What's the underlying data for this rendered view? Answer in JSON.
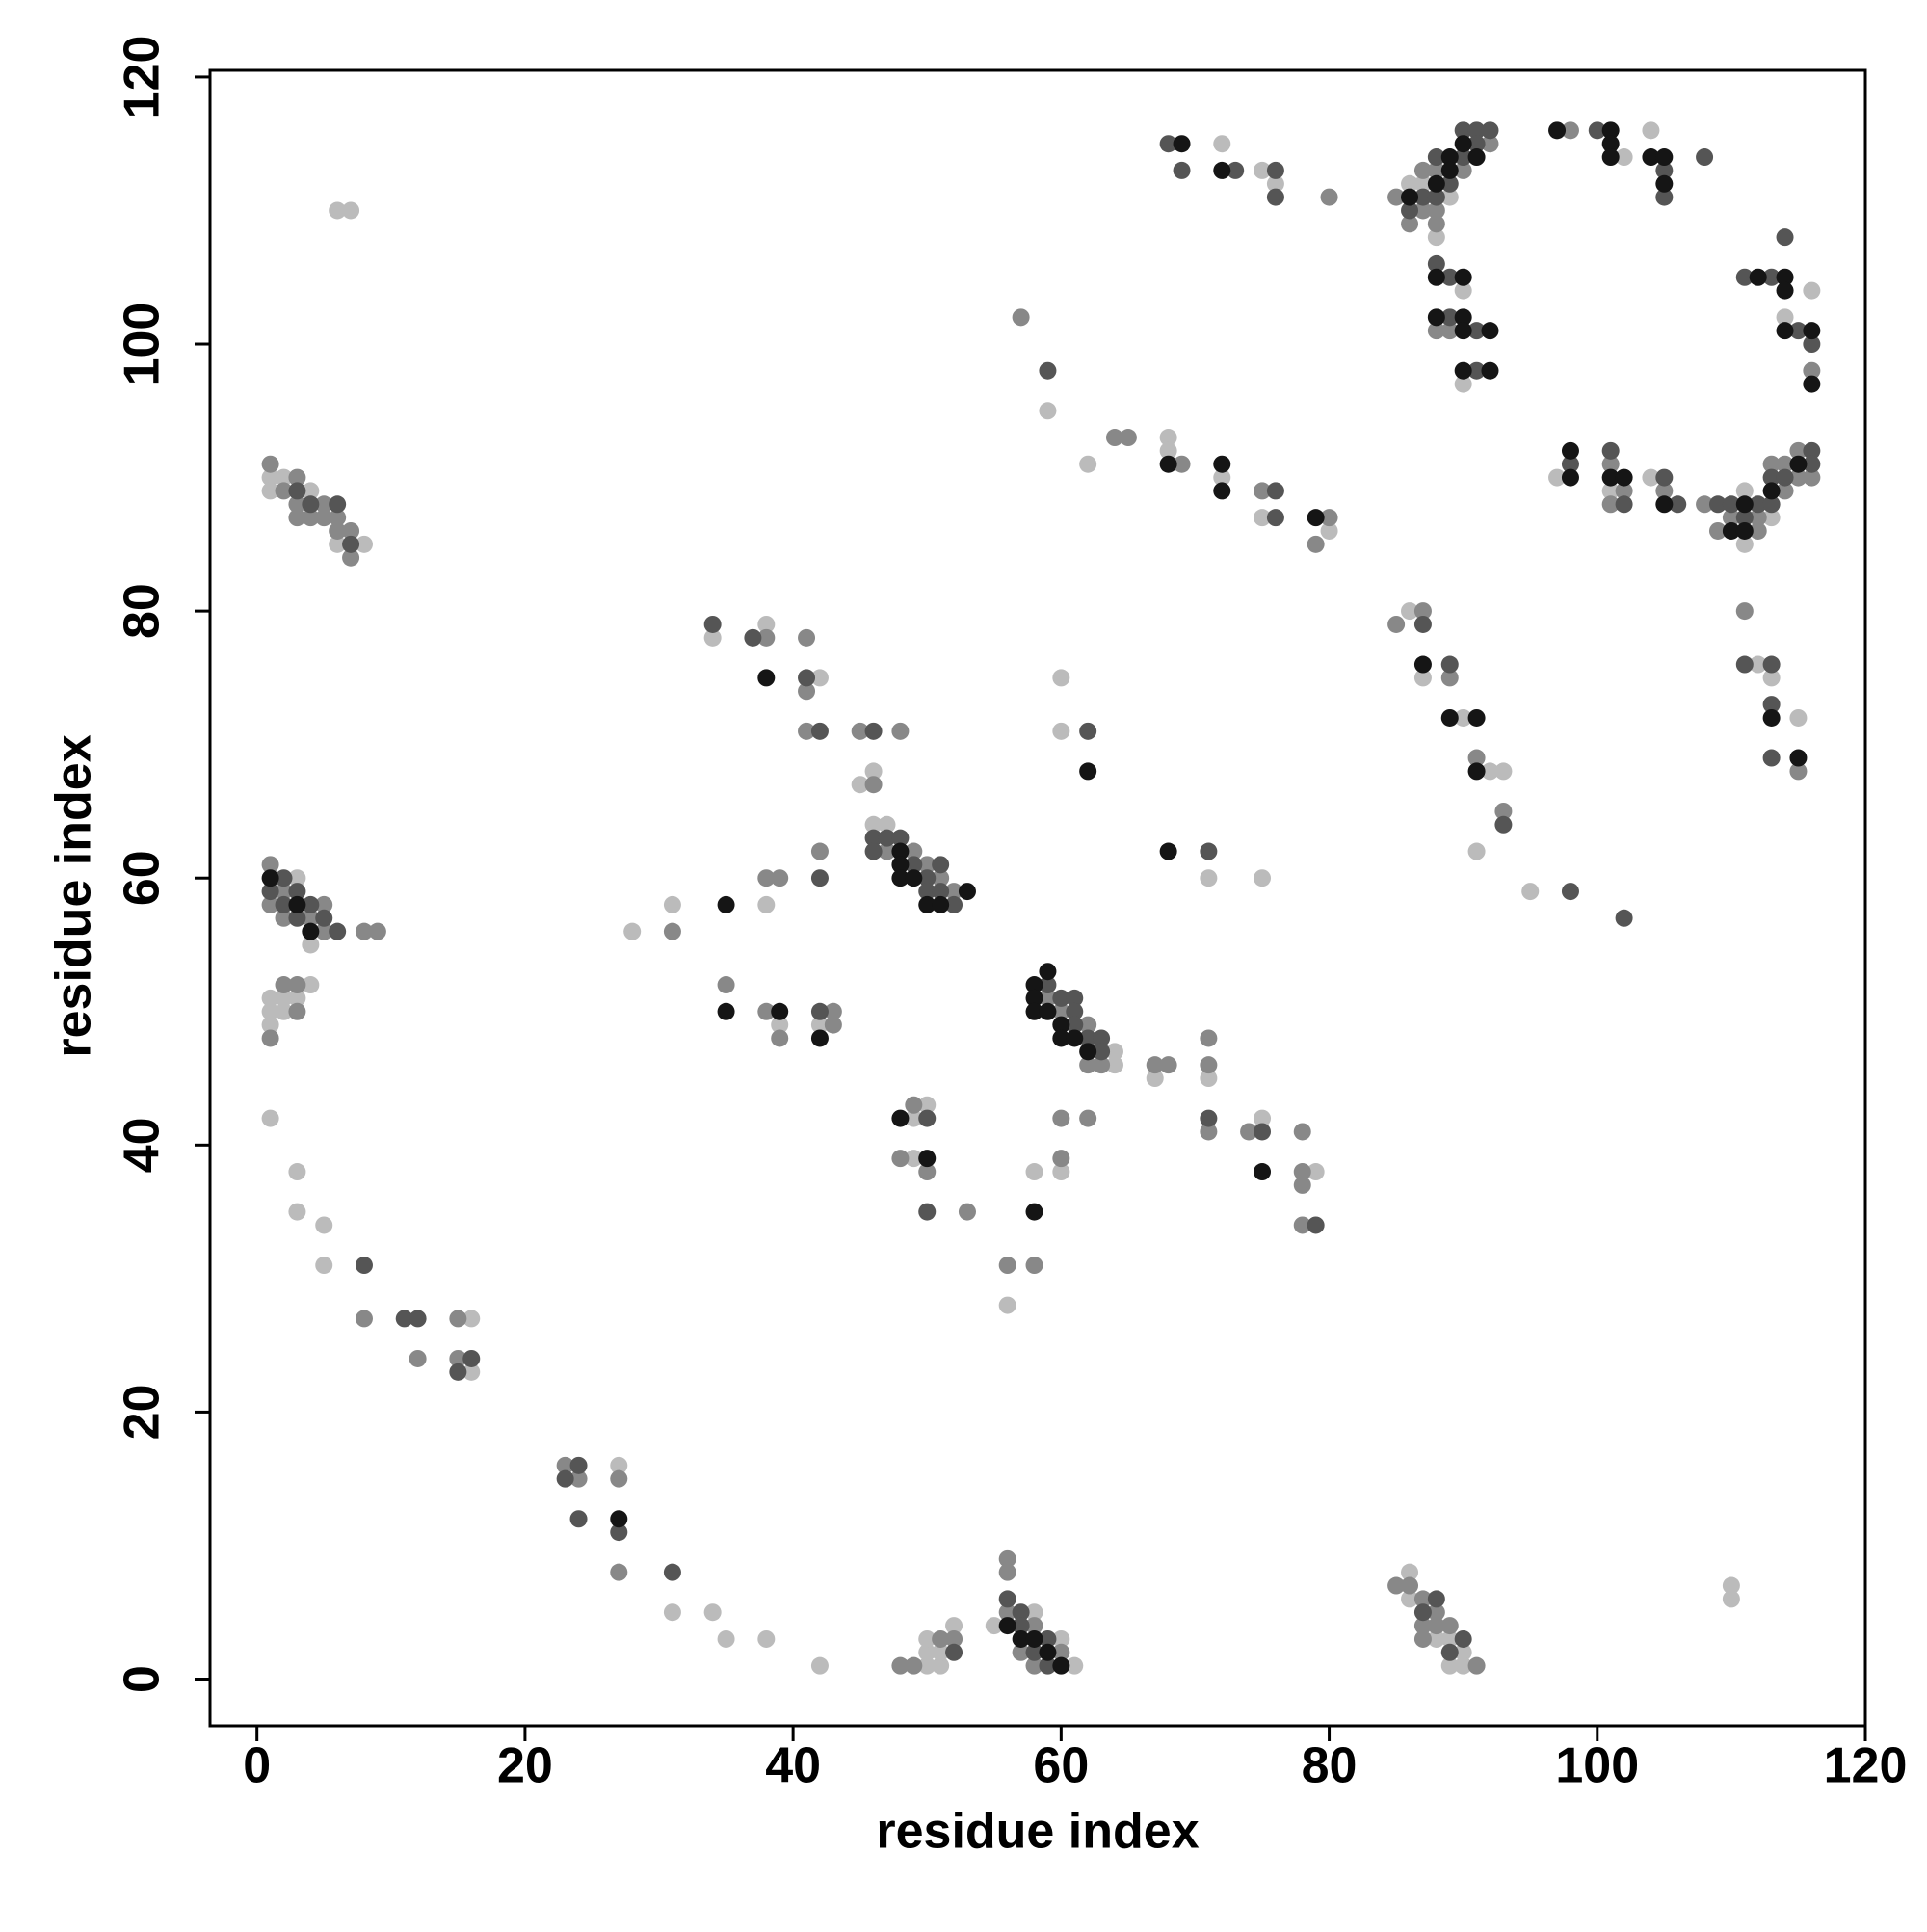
{
  "chart_data": {
    "type": "scatter",
    "xlabel": "residue index",
    "ylabel": "residue index",
    "xlim": [
      -3.5,
      120
    ],
    "ylim": [
      -3.5,
      120.5
    ],
    "xticks": [
      0,
      20,
      40,
      60,
      80,
      100,
      120
    ],
    "yticks": [
      0,
      20,
      40,
      60,
      80,
      100,
      120
    ],
    "series": [
      {
        "color": "#bbbbbb",
        "x": [
          1,
          3,
          3,
          5,
          5,
          16,
          16,
          27,
          31,
          34,
          35,
          38,
          42,
          50,
          50,
          50,
          51,
          52,
          51,
          55,
          58,
          60,
          61,
          86,
          86,
          88,
          89,
          89,
          90,
          90,
          110,
          110,
          3,
          4,
          1,
          1,
          1,
          2,
          2,
          3,
          4,
          6,
          7,
          1,
          1,
          2,
          4,
          6,
          8,
          34,
          38,
          42,
          45,
          46,
          46,
          47,
          38,
          31,
          28,
          39,
          42,
          50,
          49,
          49,
          64,
          64,
          67,
          71,
          75,
          79,
          60,
          58,
          56,
          60,
          60,
          71,
          75,
          59,
          62,
          68,
          68,
          72,
          75,
          80,
          72,
          75,
          76,
          86,
          87,
          88,
          89,
          90,
          90,
          102,
          104,
          116,
          114,
          97,
          101,
          104,
          111,
          111,
          113,
          112,
          113,
          115,
          86,
          87,
          90,
          92,
          93,
          91,
          95
        ],
        "values": [
          42,
          38,
          35,
          34,
          31,
          27,
          23,
          16,
          5,
          5,
          3,
          3,
          1,
          1,
          2,
          3,
          1,
          4,
          2,
          4,
          5,
          3,
          1,
          8,
          6,
          3,
          3,
          1,
          2,
          1,
          7,
          6,
          60,
          55,
          51,
          50,
          49,
          51,
          50,
          51,
          52,
          110,
          110,
          90,
          89,
          90,
          89,
          85,
          85,
          78,
          79,
          75,
          67,
          68,
          64,
          64,
          58,
          58,
          56,
          49,
          49,
          43,
          42,
          39,
          47,
          46,
          45,
          45,
          42,
          38,
          38,
          38,
          28,
          75,
          71,
          60,
          60,
          95,
          91,
          93,
          92,
          90,
          87,
          86,
          115,
          113,
          112,
          112,
          112,
          108,
          111,
          104,
          97,
          114,
          116,
          104,
          102,
          90,
          89,
          90,
          85,
          89,
          87,
          76,
          75,
          72,
          80,
          75,
          72,
          68,
          68,
          62,
          59
        ]
      },
      {
        "color": "#888888",
        "x": [
          8,
          12,
          15,
          15,
          24,
          27,
          27,
          48,
          49,
          51,
          52,
          56,
          56,
          56,
          57,
          58,
          58,
          60,
          85,
          86,
          87,
          87,
          87,
          88,
          88,
          89,
          91,
          23,
          1,
          1,
          2,
          2,
          4,
          5,
          5,
          8,
          9,
          1,
          2,
          3,
          3,
          1,
          2,
          3,
          3,
          3,
          4,
          5,
          5,
          6,
          6,
          7,
          7,
          38,
          41,
          41,
          41,
          45,
          48,
          46,
          47,
          49,
          50,
          51,
          52,
          42,
          38,
          39,
          31,
          35,
          38,
          39,
          43,
          43,
          49,
          48,
          50,
          53,
          59,
          60,
          62,
          62,
          63,
          67,
          68,
          71,
          71,
          71,
          74,
          78,
          78,
          78,
          78,
          60,
          62,
          60,
          56,
          58,
          57,
          64,
          65,
          69,
          75,
          80,
          79,
          80,
          85,
          86,
          87,
          87,
          88,
          88,
          88,
          90,
          92,
          88,
          89,
          98,
          101,
          101,
          102,
          105,
          116,
          108,
          109,
          110,
          112,
          112,
          114,
          114,
          115,
          115,
          116,
          113,
          111,
          115,
          85,
          87,
          89,
          91,
          93
        ],
        "values": [
          27,
          24,
          27,
          24,
          15,
          15,
          8,
          1,
          1,
          3,
          3,
          9,
          8,
          5,
          2,
          4,
          1,
          2,
          7,
          7,
          6,
          4,
          3,
          5,
          4,
          4,
          1,
          16,
          61,
          58,
          59,
          57,
          57,
          58,
          56,
          56,
          56,
          48,
          52,
          52,
          50,
          91,
          89,
          90,
          88,
          87,
          87,
          88,
          87,
          87,
          86,
          86,
          84,
          78,
          78,
          74,
          71,
          71,
          71,
          67,
          62,
          62,
          61,
          60,
          59,
          62,
          60,
          60,
          56,
          52,
          50,
          48,
          50,
          49,
          43,
          39,
          38,
          35,
          51,
          50,
          49,
          46,
          46,
          46,
          46,
          48,
          46,
          41,
          41,
          41,
          38,
          37,
          34,
          42,
          42,
          39,
          31,
          31,
          102,
          93,
          93,
          91,
          89,
          87,
          85,
          111,
          111,
          109,
          113,
          110,
          113,
          110,
          109,
          113,
          115,
          101,
          101,
          116,
          91,
          88,
          89,
          89,
          98,
          88,
          86,
          87,
          87,
          86,
          91,
          89,
          92,
          90,
          90,
          91,
          80,
          68,
          79,
          80,
          75,
          69,
          65
        ]
      },
      {
        "color": "#555555",
        "x": [
          8,
          11,
          12,
          16,
          15,
          24,
          23,
          24,
          27,
          31,
          52,
          56,
          57,
          57,
          58,
          59,
          59,
          87,
          88,
          89,
          90,
          1,
          2,
          2,
          3,
          3,
          4,
          5,
          6,
          3,
          4,
          6,
          7,
          34,
          37,
          41,
          42,
          46,
          46,
          47,
          48,
          46,
          49,
          51,
          50,
          50,
          51,
          52,
          42,
          42,
          50,
          50,
          59,
          60,
          61,
          61,
          61,
          62,
          63,
          63,
          71,
          75,
          79,
          62,
          71,
          59,
          76,
          76,
          68,
          69,
          73,
          76,
          76,
          86,
          87,
          88,
          88,
          89,
          90,
          90,
          91,
          91,
          92,
          88,
          89,
          89,
          91,
          91,
          100,
          105,
          105,
          108,
          111,
          113,
          114,
          115,
          116,
          98,
          101,
          102,
          105,
          106,
          109,
          110,
          111,
          112,
          113,
          113,
          114,
          116,
          116,
          111,
          113,
          113,
          113,
          87,
          89,
          93,
          98,
          102
        ],
        "values": [
          31,
          27,
          27,
          24,
          23,
          16,
          15,
          12,
          11,
          8,
          2,
          6,
          5,
          4,
          2,
          3,
          1,
          5,
          6,
          2,
          3,
          59,
          60,
          58,
          59,
          57,
          58,
          57,
          56,
          89,
          88,
          88,
          85,
          79,
          78,
          75,
          71,
          71,
          63,
          63,
          63,
          62,
          61,
          61,
          60,
          59,
          59,
          58,
          60,
          50,
          42,
          35,
          52,
          51,
          51,
          50,
          49,
          48,
          48,
          47,
          42,
          41,
          34,
          71,
          62,
          98,
          89,
          87,
          115,
          113,
          113,
          113,
          111,
          110,
          111,
          114,
          111,
          112,
          116,
          114,
          116,
          115,
          116,
          106,
          105,
          102,
          101,
          98,
          116,
          113,
          111,
          114,
          105,
          105,
          108,
          101,
          100,
          91,
          92,
          88,
          90,
          88,
          88,
          88,
          87,
          88,
          90,
          88,
          90,
          92,
          91,
          76,
          76,
          73,
          69,
          79,
          76,
          64,
          59,
          57
        ]
      },
      {
        "color": "#151515",
        "x": [
          27,
          56,
          57,
          58,
          59,
          60,
          1,
          3,
          4,
          38,
          48,
          48,
          48,
          49,
          53,
          50,
          51,
          35,
          35,
          39,
          42,
          48,
          50,
          58,
          59,
          58,
          58,
          59,
          60,
          60,
          61,
          62,
          75,
          58,
          62,
          68,
          68,
          72,
          72,
          79,
          69,
          72,
          86,
          88,
          89,
          89,
          90,
          91,
          88,
          90,
          88,
          90,
          90,
          92,
          90,
          92,
          97,
          101,
          101,
          101,
          104,
          105,
          105,
          112,
          114,
          114,
          114,
          116,
          116,
          98,
          98,
          101,
          102,
          105,
          110,
          111,
          111,
          113,
          115,
          113,
          115,
          87,
          89,
          91,
          91
        ],
        "values": [
          12,
          4,
          3,
          3,
          2,
          1,
          60,
          58,
          56,
          75,
          62,
          61,
          60,
          60,
          59,
          58,
          58,
          58,
          50,
          50,
          48,
          42,
          39,
          52,
          53,
          51,
          50,
          50,
          49,
          48,
          48,
          47,
          38,
          35,
          68,
          62,
          91,
          91,
          89,
          87,
          115,
          113,
          111,
          112,
          114,
          113,
          115,
          114,
          105,
          105,
          102,
          102,
          101,
          101,
          98,
          98,
          116,
          116,
          115,
          114,
          114,
          114,
          112,
          105,
          105,
          104,
          101,
          101,
          97,
          92,
          90,
          90,
          90,
          88,
          86,
          88,
          86,
          89,
          91,
          72,
          69,
          76,
          72,
          72,
          68
        ]
      }
    ]
  }
}
